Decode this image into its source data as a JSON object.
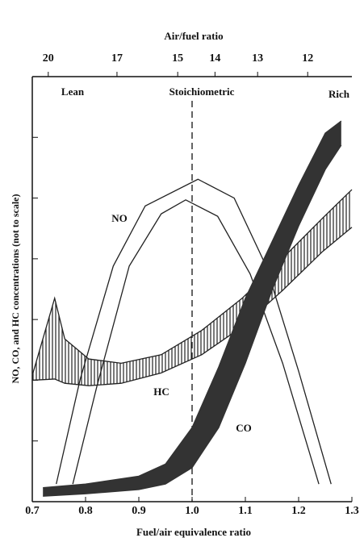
{
  "chart_data": {
    "type": "band",
    "title": "Air/fuel ratio",
    "x_label": "Fuel/air equivalence ratio",
    "y_label": "NO, CO, and HC concentrations (not to scale)",
    "annotations": [
      "Lean",
      "Stoichiometric",
      "Rich"
    ],
    "stoichiometric_line": 1,
    "xlim": [
      0.7,
      1.3
    ],
    "xticks": [
      0.7,
      0.8,
      0.9,
      {
        "value": 1,
        "label": "1.0"
      },
      1.1,
      1.2,
      1.3
    ],
    "x2ticks": [
      {
        "value": 0.73,
        "label": "20"
      },
      {
        "value": 0.859,
        "label": "17"
      },
      {
        "value": 0.973,
        "label": "15"
      },
      {
        "value": 1.043,
        "label": "14"
      },
      {
        "value": 1.123,
        "label": "13"
      },
      {
        "value": 1.217,
        "label": "12"
      }
    ],
    "ylim": [
      0,
      7
    ],
    "yticks": [
      1,
      2,
      3,
      4,
      5,
      6
    ],
    "series": [
      {
        "name": "NO",
        "color": "#222222",
        "style": "lines",
        "curves": [
          {
            "x": [
              0.745,
              0.79,
              0.852,
              0.912,
              1.011,
              1.079,
              1.139,
              1.2,
              1.261
            ],
            "values": [
              0.29,
              2.02,
              3.88,
              4.87,
              5.31,
              5.0,
              3.88,
              2.15,
              0.29
            ]
          },
          {
            "x": [
              0.776,
              0.821,
              0.882,
              0.942,
              0.988,
              1.048,
              1.109,
              1.17,
              1.238
            ],
            "values": [
              0.29,
              1.89,
              3.88,
              4.74,
              4.97,
              4.7,
              3.75,
              2.28,
              0.29
            ]
          }
        ]
      },
      {
        "name": "HC",
        "color": "#222222",
        "style": "hatched",
        "x": [
          0.7,
          0.742,
          0.761,
          0.806,
          0.867,
          0.942,
          1.018,
          1.094,
          1.17,
          1.245,
          1.3
        ],
        "upper": [
          2.08,
          3.35,
          2.68,
          2.35,
          2.28,
          2.42,
          2.82,
          3.35,
          4.01,
          4.67,
          5.14
        ],
        "lower": [
          2.0,
          2.02,
          1.95,
          1.91,
          1.95,
          2.12,
          2.42,
          2.88,
          3.48,
          4.12,
          4.52
        ]
      },
      {
        "name": "CO",
        "color": "#333333",
        "style": "filled",
        "x": [
          0.72,
          0.8,
          0.9,
          0.95,
          1.0,
          1.05,
          1.1,
          1.15,
          1.2,
          1.25,
          1.28
        ],
        "upper": [
          0.23,
          0.29,
          0.42,
          0.62,
          1.22,
          2.22,
          3.35,
          4.28,
          5.21,
          6.07,
          6.27
        ],
        "lower": [
          0.09,
          0.13,
          0.2,
          0.29,
          0.56,
          1.22,
          2.28,
          3.48,
          4.54,
          5.47,
          5.87
        ]
      }
    ]
  }
}
